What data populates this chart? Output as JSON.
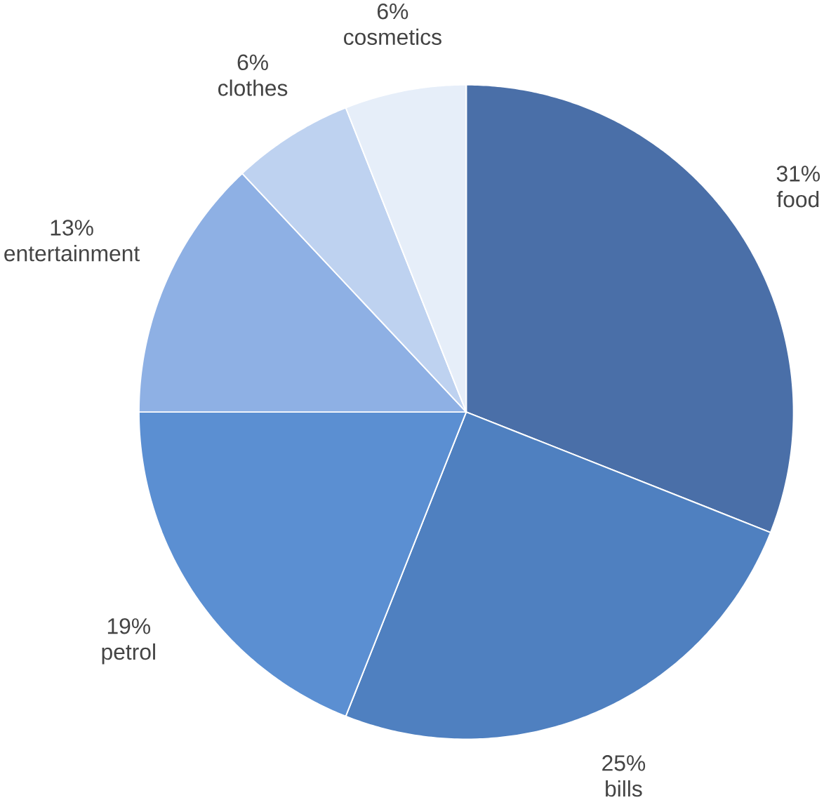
{
  "chart_data": {
    "type": "pie",
    "categories": [
      "food",
      "bills",
      "petrol",
      "entertainment",
      "clothes",
      "cosmetics"
    ],
    "values": [
      31,
      25,
      19,
      13,
      6,
      6
    ],
    "value_labels": [
      "31%",
      "25%",
      "19%",
      "13%",
      "6%",
      "6%"
    ],
    "colors": [
      "#4a6fa8",
      "#4f80c0",
      "#5b8fd2",
      "#8eb0e4",
      "#bed2f0",
      "#e6eef9"
    ]
  }
}
